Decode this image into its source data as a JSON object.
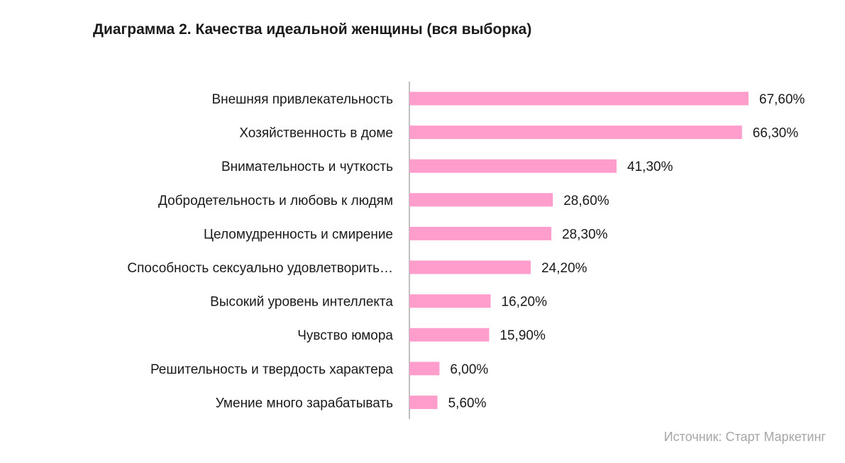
{
  "chart_data": {
    "type": "bar",
    "orientation": "horizontal",
    "title": "Диаграмма 2. Качества идеальной женщины (вся выборка)",
    "categories": [
      "Внешняя привлекательность",
      "Хозяйственность в доме",
      "Внимательность и чуткость",
      "Добродетельность и любовь к людям",
      "Целомудренность и смирение",
      "Способность сексуально удовлетворить…",
      "Высокий уровень интеллекта",
      "Чувство юмора",
      "Решительность и твердость характера",
      "Умение много зарабатывать"
    ],
    "values": [
      67.6,
      66.3,
      41.3,
      28.6,
      28.3,
      24.2,
      16.2,
      15.9,
      6.0,
      5.6
    ],
    "value_labels": [
      "67,60%",
      "66,30%",
      "41,30%",
      "28,60%",
      "28,30%",
      "24,20%",
      "16,20%",
      "15,90%",
      "6,00%",
      "5,60%"
    ],
    "xlim": [
      0,
      70
    ],
    "grid": false,
    "legend": "none",
    "bar_color": "#ff9dcc",
    "axis_color": "#808080"
  },
  "source": "Источник: Старт Маркетинг"
}
